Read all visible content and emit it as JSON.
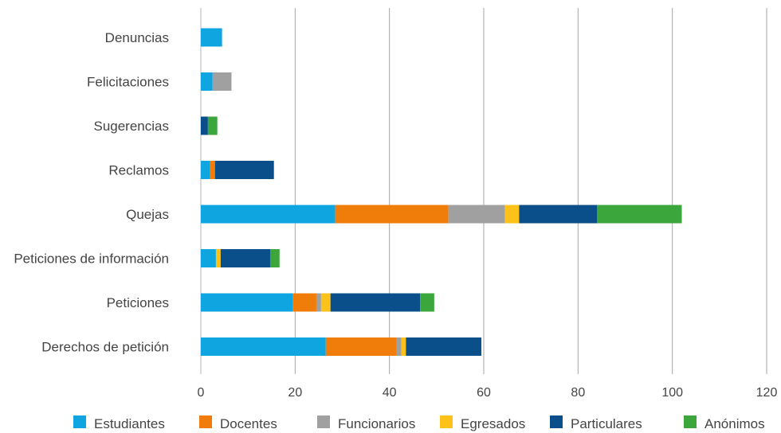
{
  "chart_data": {
    "type": "bar",
    "orientation": "horizontal",
    "stacked": true,
    "categories": [
      "Denuncias",
      "Felicitaciones",
      "Sugerencias",
      "Reclamos",
      "Quejas",
      "Peticiones de información",
      "Peticiones",
      "Derechos de petición"
    ],
    "series": [
      {
        "name": "Estudiantes",
        "color": "#0ea5e0",
        "values": [
          4.5,
          2.5,
          0,
          2,
          28.5,
          3.2,
          19.5,
          26.5
        ]
      },
      {
        "name": "Docentes",
        "color": "#f07c0a",
        "values": [
          0,
          0,
          0,
          1,
          24,
          0,
          5,
          15
        ]
      },
      {
        "name": "Funcionarios",
        "color": "#a0a0a0",
        "values": [
          0,
          4,
          0,
          0,
          12,
          0,
          1,
          1
        ]
      },
      {
        "name": "Egresados",
        "color": "#fcc21a",
        "values": [
          0,
          0,
          0,
          0,
          3,
          1,
          2,
          1
        ]
      },
      {
        "name": "Particulares",
        "color": "#0a4f8a",
        "values": [
          0,
          0,
          1.5,
          12.5,
          16.5,
          10.5,
          19,
          16
        ]
      },
      {
        "name": "Anónimos",
        "color": "#3ba63b",
        "values": [
          0,
          0,
          2,
          0,
          18,
          2,
          3,
          0
        ]
      }
    ],
    "xlim": [
      0,
      120
    ],
    "xticks": [
      0,
      20,
      40,
      60,
      80,
      100,
      120
    ],
    "grid": true,
    "legend_position": "bottom"
  }
}
